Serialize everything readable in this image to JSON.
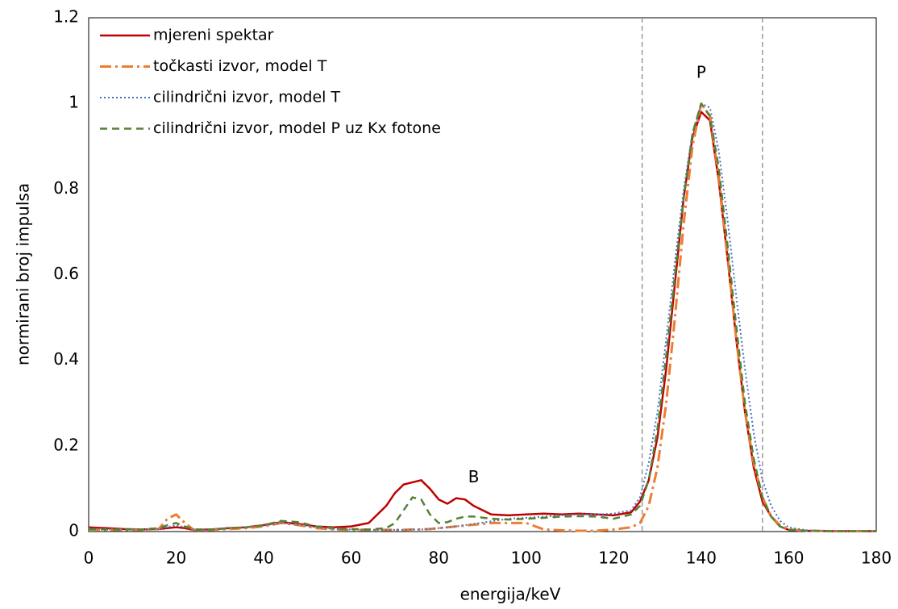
{
  "chart_data": {
    "type": "line",
    "x_label": "energija/keV",
    "y_label": "normirani broj impulsa",
    "x": [
      0,
      4,
      8,
      12,
      16,
      18,
      20,
      22,
      24,
      28,
      32,
      36,
      40,
      44,
      48,
      52,
      56,
      60,
      64,
      68,
      70,
      72,
      74,
      76,
      78,
      80,
      82,
      84,
      86,
      88,
      92,
      96,
      100,
      104,
      108,
      112,
      116,
      120,
      124,
      126,
      128,
      130,
      132,
      134,
      136,
      138,
      140,
      142,
      144,
      146,
      148,
      150,
      152,
      154,
      156,
      158,
      160,
      164,
      170,
      180
    ],
    "series": [
      {
        "name": "mjereni spektar",
        "color": "#c00000",
        "dash": "solid",
        "values": [
          0.01,
          0.008,
          0.006,
          0.005,
          0.006,
          0.008,
          0.01,
          0.008,
          0.004,
          0.005,
          0.008,
          0.01,
          0.015,
          0.022,
          0.018,
          0.012,
          0.01,
          0.012,
          0.02,
          0.06,
          0.09,
          0.11,
          0.115,
          0.12,
          0.1,
          0.075,
          0.065,
          0.078,
          0.075,
          0.06,
          0.04,
          0.038,
          0.04,
          0.042,
          0.04,
          0.042,
          0.04,
          0.038,
          0.045,
          0.07,
          0.12,
          0.22,
          0.38,
          0.58,
          0.78,
          0.92,
          0.98,
          0.96,
          0.82,
          0.64,
          0.45,
          0.28,
          0.15,
          0.07,
          0.035,
          0.012,
          0.004,
          0.002,
          0.001,
          0.001
        ]
      },
      {
        "name": "točkasti izvor, model T",
        "color": "#ed7d31",
        "dash": "dashdot",
        "values": [
          0.005,
          0.004,
          0.004,
          0.004,
          0.006,
          0.03,
          0.04,
          0.02,
          0.004,
          0.004,
          0.006,
          0.008,
          0.012,
          0.02,
          0.015,
          0.008,
          0.005,
          0.004,
          0.004,
          0.004,
          0.004,
          0.004,
          0.005,
          0.005,
          0.006,
          0.008,
          0.01,
          0.012,
          0.014,
          0.016,
          0.02,
          0.02,
          0.02,
          0.005,
          0.003,
          0.002,
          0.002,
          0.005,
          0.01,
          0.02,
          0.06,
          0.15,
          0.3,
          0.5,
          0.72,
          0.9,
          1.0,
          0.97,
          0.83,
          0.65,
          0.45,
          0.28,
          0.16,
          0.08,
          0.035,
          0.015,
          0.005,
          0.002,
          0.001,
          0.001
        ]
      },
      {
        "name": "cilindrični izvor, model T",
        "color": "#4472c4",
        "dash": "dotted",
        "values": [
          0.008,
          0.006,
          0.005,
          0.005,
          0.006,
          0.01,
          0.015,
          0.01,
          0.005,
          0.005,
          0.008,
          0.01,
          0.014,
          0.02,
          0.016,
          0.01,
          0.006,
          0.005,
          0.004,
          0.004,
          0.004,
          0.004,
          0.005,
          0.005,
          0.006,
          0.008,
          0.01,
          0.012,
          0.015,
          0.018,
          0.024,
          0.03,
          0.032,
          0.035,
          0.038,
          0.04,
          0.04,
          0.042,
          0.05,
          0.08,
          0.16,
          0.28,
          0.45,
          0.63,
          0.8,
          0.93,
          1.0,
          0.99,
          0.89,
          0.73,
          0.55,
          0.38,
          0.23,
          0.12,
          0.06,
          0.025,
          0.01,
          0.003,
          0.001,
          0.001
        ]
      },
      {
        "name": "cilindrični izvor, model P uz Kx fotone",
        "color": "#548235",
        "dash": "dashed",
        "values": [
          0.006,
          0.005,
          0.005,
          0.005,
          0.008,
          0.015,
          0.02,
          0.012,
          0.005,
          0.005,
          0.008,
          0.01,
          0.015,
          0.025,
          0.022,
          0.012,
          0.008,
          0.006,
          0.005,
          0.008,
          0.02,
          0.05,
          0.08,
          0.075,
          0.04,
          0.02,
          0.022,
          0.03,
          0.035,
          0.035,
          0.03,
          0.028,
          0.03,
          0.032,
          0.035,
          0.036,
          0.035,
          0.03,
          0.04,
          0.06,
          0.12,
          0.24,
          0.41,
          0.6,
          0.78,
          0.93,
          1.0,
          0.97,
          0.85,
          0.67,
          0.48,
          0.3,
          0.17,
          0.08,
          0.035,
          0.012,
          0.004,
          0.002,
          0.001,
          0.001
        ]
      }
    ],
    "xlim": [
      0,
      180
    ],
    "xticks": [
      0,
      20,
      40,
      60,
      80,
      100,
      120,
      140,
      160,
      180
    ],
    "ylim": [
      0,
      1.2
    ],
    "yticks": [
      0,
      0.2,
      0.4,
      0.6,
      0.8,
      1,
      1.2
    ],
    "grid": false,
    "legend": "upper left",
    "vlines": [
      126.5,
      154
    ],
    "annotations": [
      {
        "text": "P",
        "x": 140,
        "y": 1.07
      },
      {
        "text": "B",
        "x": 88,
        "y": 0.125
      }
    ]
  }
}
